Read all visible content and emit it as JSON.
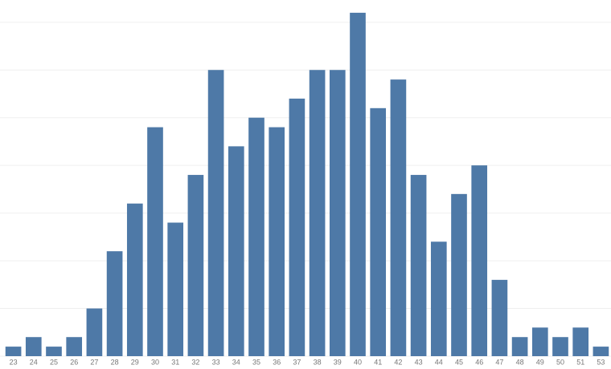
{
  "chart_data": {
    "type": "bar",
    "categories": [
      "23",
      "24",
      "25",
      "26",
      "27",
      "28",
      "29",
      "30",
      "31",
      "32",
      "33",
      "34",
      "35",
      "36",
      "37",
      "38",
      "39",
      "40",
      "41",
      "42",
      "43",
      "44",
      "45",
      "46",
      "47",
      "48",
      "49",
      "50",
      "51",
      "53"
    ],
    "values": [
      1,
      2,
      1,
      2,
      5,
      11,
      16,
      24,
      14,
      19,
      30,
      22,
      25,
      24,
      27,
      30,
      30,
      36,
      26,
      29,
      19,
      12,
      17,
      20,
      8,
      2,
      3,
      2,
      3,
      1
    ],
    "color": "#4e79a7",
    "ylim": [
      0,
      37
    ],
    "yticks": [
      0,
      5,
      10,
      15,
      20,
      25,
      30,
      35
    ],
    "grid": true
  }
}
